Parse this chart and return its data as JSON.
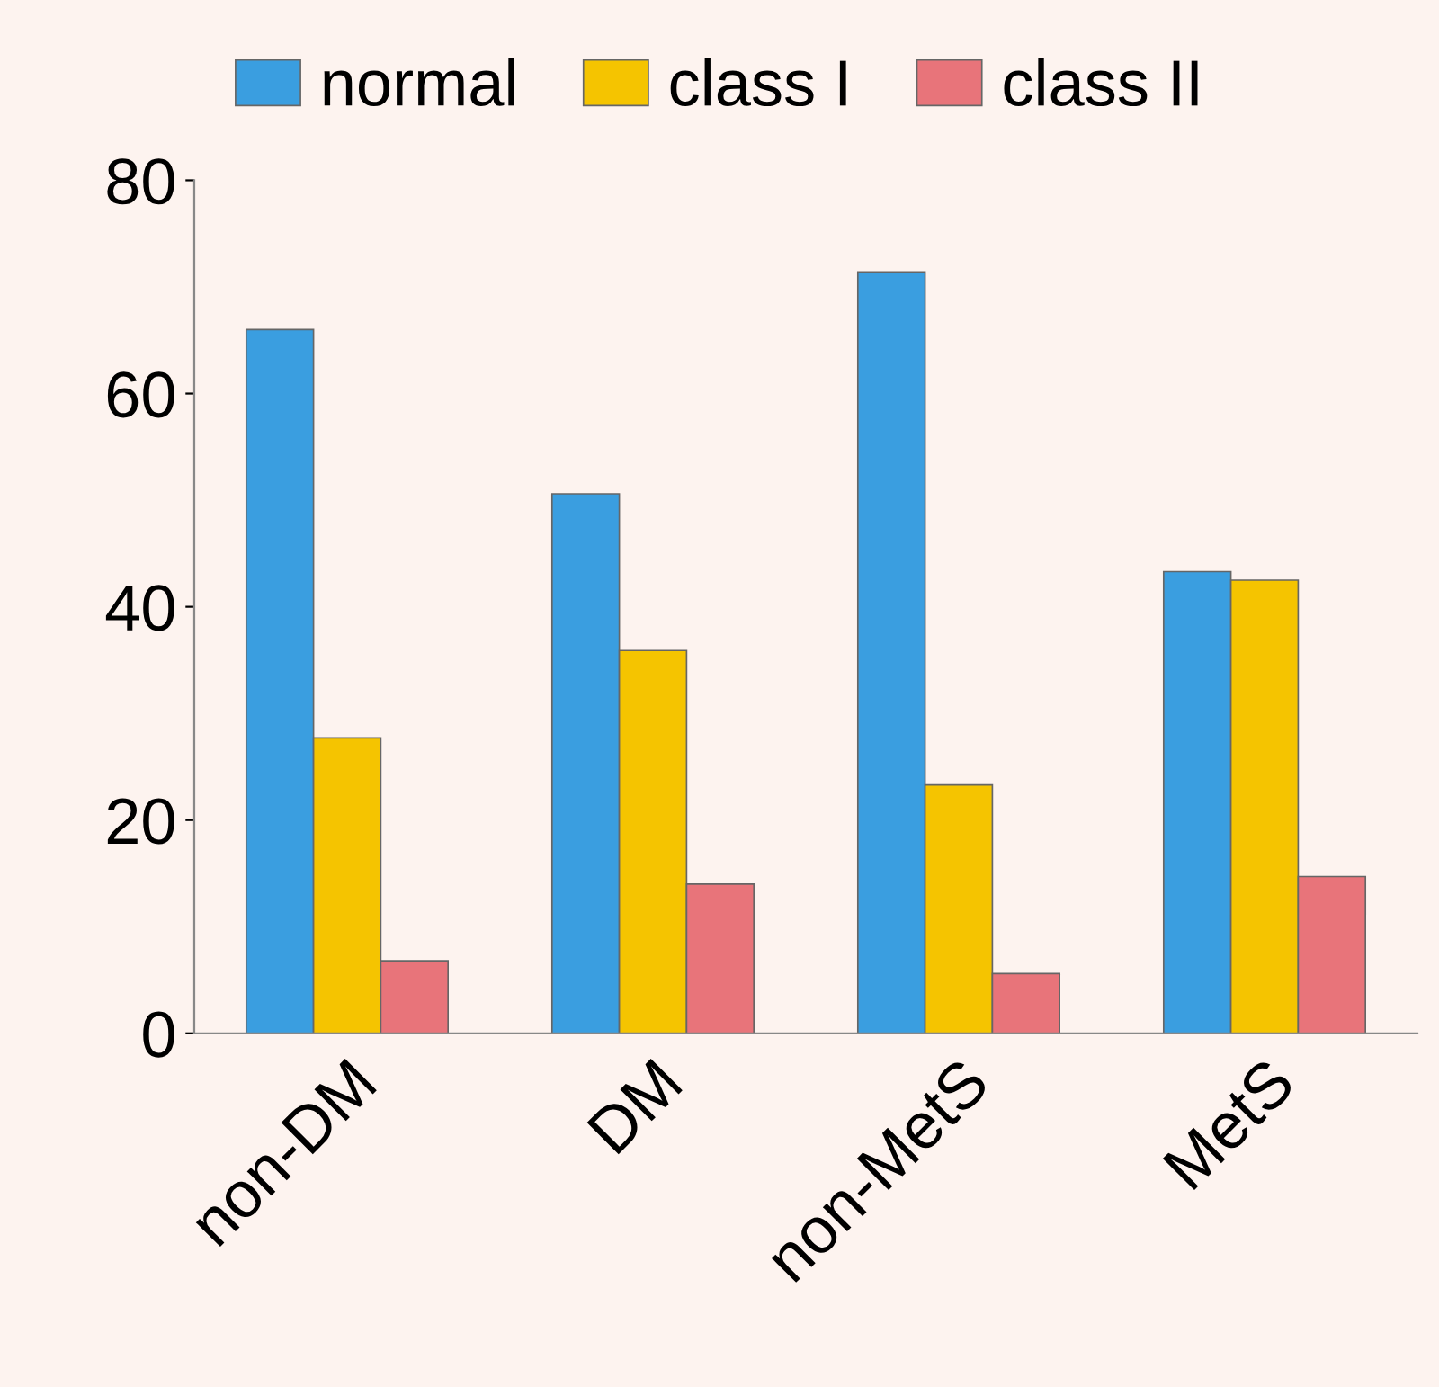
{
  "chart_data": {
    "type": "bar",
    "categories": [
      "non-DM",
      "DM",
      "non-MetS",
      "MetS"
    ],
    "series": [
      {
        "name": "normal",
        "color": "#3a9ee0",
        "values": [
          66,
          50.6,
          71.4,
          43.3
        ]
      },
      {
        "name": "class I",
        "color": "#f5c400",
        "values": [
          27.7,
          35.9,
          23.3,
          42.5
        ]
      },
      {
        "name": "class II",
        "color": "#e8747a",
        "values": [
          6.8,
          14.0,
          5.6,
          14.7
        ]
      }
    ],
    "ylim": [
      0,
      80
    ],
    "yticks": [
      0,
      20,
      40,
      60,
      80
    ],
    "grid": false,
    "legend": "top"
  }
}
